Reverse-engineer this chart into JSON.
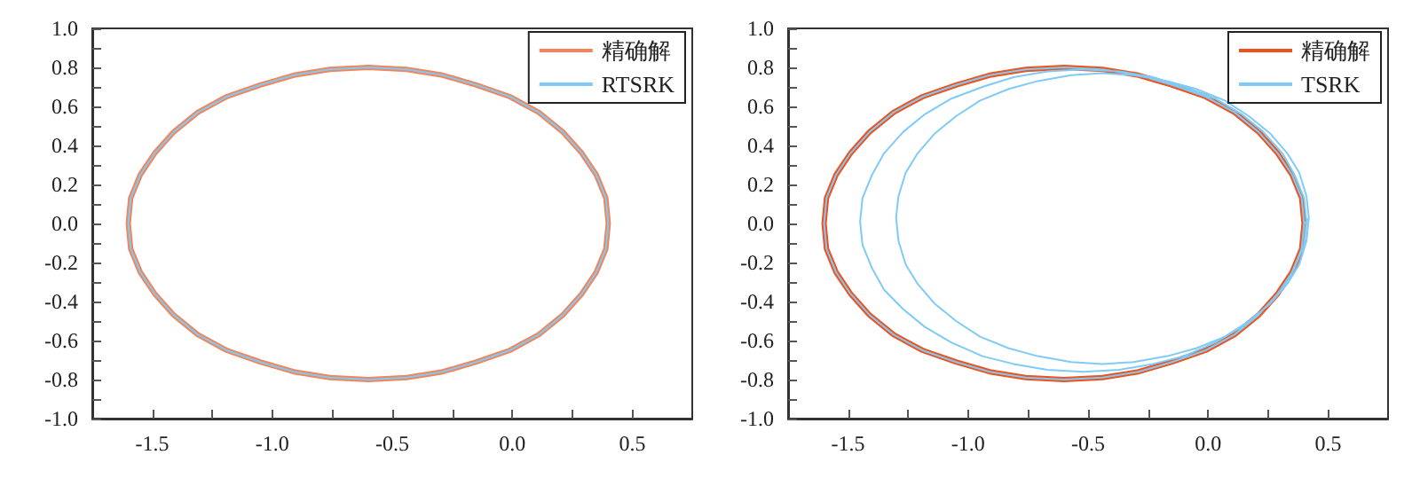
{
  "chart_data": [
    {
      "type": "line",
      "marker": "none",
      "line_style": "solid",
      "grid": false,
      "legend": "top right",
      "xlim": [
        -1.75,
        0.75
      ],
      "ylim": [
        -1.0,
        1.0
      ],
      "xticks": [
        {
          "value": -1.5,
          "label": "-1.5"
        },
        {
          "value": -1.25,
          "label": null
        },
        {
          "value": -1.0,
          "label": "-1.0"
        },
        {
          "value": -0.75,
          "label": null
        },
        {
          "value": -0.5,
          "label": "-0.5"
        },
        {
          "value": -0.25,
          "label": null
        },
        {
          "value": 0,
          "label": "0.0"
        },
        {
          "value": 0.25,
          "label": null
        },
        {
          "value": 0.5,
          "label": "0.5"
        }
      ],
      "yticks": [
        {
          "value": -1.0,
          "label": "-1.0"
        },
        {
          "value": -0.9,
          "label": null
        },
        {
          "value": -0.8,
          "label": "-0.8"
        },
        {
          "value": -0.7,
          "label": null
        },
        {
          "value": -0.6,
          "label": "-0.6"
        },
        {
          "value": -0.5,
          "label": null
        },
        {
          "value": -0.4,
          "label": "-0.4"
        },
        {
          "value": -0.3,
          "label": null
        },
        {
          "value": -0.2,
          "label": "-0.2"
        },
        {
          "value": -0.1,
          "label": null
        },
        {
          "value": 0,
          "label": "0.0"
        },
        {
          "value": 0.1,
          "label": null
        },
        {
          "value": 0.2,
          "label": "0.2"
        },
        {
          "value": 0.3,
          "label": null
        },
        {
          "value": 0.4,
          "label": "0.4"
        },
        {
          "value": 0.5,
          "label": null
        },
        {
          "value": 0.6,
          "label": "0.6"
        },
        {
          "value": 0.7,
          "label": null
        },
        {
          "value": 0.8,
          "label": "0.8"
        },
        {
          "value": 0.9,
          "label": null
        },
        {
          "value": 1.0,
          "label": "1.0"
        }
      ],
      "series": [
        {
          "name": "精确解",
          "color": "#f4845a",
          "x": [
            0.4,
            0.39,
            0.35,
            0.29,
            0.21,
            0.11,
            -0.01,
            -0.15,
            -0.29,
            -0.44,
            -0.6,
            -0.76,
            -0.91,
            -1.05,
            -1.19,
            -1.31,
            -1.41,
            -1.49,
            -1.55,
            -1.59,
            -1.6,
            -1.59,
            -1.55,
            -1.49,
            -1.41,
            -1.31,
            -1.19,
            -1.05,
            -0.91,
            -0.76,
            -0.6,
            -0.44,
            -0.29,
            -0.15,
            -0.01,
            0.11,
            0.21,
            0.29,
            0.35,
            0.39,
            0.4,
            0.39
          ],
          "values": [
            0,
            0.13,
            0.25,
            0.36,
            0.47,
            0.57,
            0.65,
            0.71,
            0.76,
            0.79,
            0.8,
            0.79,
            0.76,
            0.71,
            0.65,
            0.57,
            0.47,
            0.36,
            0.25,
            0.13,
            0,
            -0.13,
            -0.25,
            -0.36,
            -0.47,
            -0.57,
            -0.65,
            -0.71,
            -0.76,
            -0.79,
            -0.8,
            -0.79,
            -0.76,
            -0.71,
            -0.65,
            -0.57,
            -0.47,
            -0.36,
            -0.25,
            -0.13,
            0,
            0.13
          ]
        },
        {
          "name": "RTSRK",
          "color": "#7ecbf5",
          "x": [
            0.4,
            0.39,
            0.35,
            0.29,
            0.21,
            0.11,
            -0.01,
            -0.15,
            -0.29,
            -0.44,
            -0.6,
            -0.76,
            -0.91,
            -1.05,
            -1.19,
            -1.31,
            -1.41,
            -1.49,
            -1.55,
            -1.59,
            -1.6,
            -1.59,
            -1.55,
            -1.49,
            -1.41,
            -1.31,
            -1.19,
            -1.05,
            -0.91,
            -0.76,
            -0.6,
            -0.44,
            -0.29,
            -0.15,
            -0.01,
            0.11,
            0.21,
            0.29,
            0.35,
            0.39,
            0.4,
            0.39
          ],
          "values": [
            0,
            0.13,
            0.25,
            0.36,
            0.47,
            0.57,
            0.65,
            0.71,
            0.76,
            0.79,
            0.8,
            0.79,
            0.76,
            0.71,
            0.65,
            0.57,
            0.47,
            0.36,
            0.25,
            0.13,
            0,
            -0.13,
            -0.25,
            -0.36,
            -0.47,
            -0.57,
            -0.65,
            -0.71,
            -0.76,
            -0.79,
            -0.8,
            -0.79,
            -0.76,
            -0.71,
            -0.65,
            -0.57,
            -0.47,
            -0.36,
            -0.25,
            -0.13,
            0,
            0.13
          ]
        }
      ]
    },
    {
      "type": "line",
      "marker": "none",
      "line_style": "solid",
      "grid": false,
      "legend": "top right",
      "xlim": [
        -1.75,
        0.75
      ],
      "ylim": [
        -1.0,
        1.0
      ],
      "xticks": [
        {
          "value": -1.5,
          "label": "-1.5"
        },
        {
          "value": -1.25,
          "label": null
        },
        {
          "value": -1.0,
          "label": "-1.0"
        },
        {
          "value": -0.75,
          "label": null
        },
        {
          "value": -0.5,
          "label": "-0.5"
        },
        {
          "value": -0.25,
          "label": null
        },
        {
          "value": 0,
          "label": "0.0"
        },
        {
          "value": 0.25,
          "label": null
        },
        {
          "value": 0.5,
          "label": "0.5"
        }
      ],
      "yticks": [
        {
          "value": -1.0,
          "label": "-1.0"
        },
        {
          "value": -0.9,
          "label": null
        },
        {
          "value": -0.8,
          "label": "-0.8"
        },
        {
          "value": -0.7,
          "label": null
        },
        {
          "value": -0.6,
          "label": "-0.6"
        },
        {
          "value": -0.5,
          "label": null
        },
        {
          "value": -0.4,
          "label": "-0.4"
        },
        {
          "value": -0.3,
          "label": null
        },
        {
          "value": -0.2,
          "label": "-0.2"
        },
        {
          "value": -0.1,
          "label": null
        },
        {
          "value": 0,
          "label": "0.0"
        },
        {
          "value": 0.1,
          "label": null
        },
        {
          "value": 0.2,
          "label": "0.2"
        },
        {
          "value": 0.3,
          "label": null
        },
        {
          "value": 0.4,
          "label": "0.4"
        },
        {
          "value": 0.5,
          "label": null
        },
        {
          "value": 0.6,
          "label": "0.6"
        },
        {
          "value": 0.7,
          "label": null
        },
        {
          "value": 0.8,
          "label": "0.8"
        },
        {
          "value": 0.9,
          "label": null
        },
        {
          "value": 1.0,
          "label": "1.0"
        }
      ],
      "series": [
        {
          "name": "精确解",
          "color": "#f0521e",
          "x": [
            0.4,
            0.39,
            0.35,
            0.29,
            0.21,
            0.11,
            -0.01,
            -0.15,
            -0.29,
            -0.44,
            -0.6,
            -0.76,
            -0.91,
            -1.05,
            -1.19,
            -1.31,
            -1.41,
            -1.49,
            -1.55,
            -1.59,
            -1.6,
            -1.59,
            -1.55,
            -1.49,
            -1.41,
            -1.31,
            -1.19,
            -1.05,
            -0.91,
            -0.76,
            -0.6,
            -0.44,
            -0.29,
            -0.15,
            -0.01,
            0.11,
            0.21,
            0.29,
            0.35,
            0.39,
            0.4,
            0.39
          ],
          "values": [
            0,
            0.13,
            0.25,
            0.36,
            0.47,
            0.57,
            0.65,
            0.71,
            0.76,
            0.79,
            0.8,
            0.79,
            0.76,
            0.71,
            0.65,
            0.57,
            0.47,
            0.36,
            0.25,
            0.13,
            0,
            -0.13,
            -0.25,
            -0.36,
            -0.47,
            -0.57,
            -0.65,
            -0.71,
            -0.76,
            -0.79,
            -0.8,
            -0.79,
            -0.76,
            -0.71,
            -0.65,
            -0.57,
            -0.47,
            -0.36,
            -0.25,
            -0.13,
            0,
            0.13
          ]
        },
        {
          "name": "TSRK",
          "color": "#7ecbf5",
          "x": [
            0.4,
            0.39,
            0.35,
            0.29,
            0.21,
            0.11,
            -0.01,
            -0.15,
            -0.29,
            -0.44,
            -0.6,
            -0.76,
            -0.91,
            -1.05,
            -1.19,
            -1.31,
            -1.41,
            -1.49,
            -1.55,
            -1.59,
            -1.6,
            -1.59,
            -1.55,
            -1.49,
            -1.41,
            -1.31,
            -1.19,
            -1.05,
            -0.91,
            -0.76,
            -0.6,
            -0.44,
            -0.29,
            -0.15,
            -0.01,
            0.11,
            0.21,
            0.29,
            0.35,
            0.39,
            0.4,
            0.41,
            0.4,
            0.36,
            0.31,
            0.23,
            0.14,
            0.03,
            -0.1,
            -0.23,
            -0.37,
            -0.52,
            -0.67,
            -0.81,
            -0.94,
            -1.07,
            -1.18,
            -1.27,
            -1.35,
            -1.4,
            -1.44,
            -1.45,
            -1.44,
            -1.4,
            -1.35,
            -1.27,
            -1.18,
            -1.07,
            -0.94,
            -0.81,
            -0.67,
            -0.52,
            -0.37,
            -0.23,
            -0.1,
            0.03,
            0.14,
            0.23,
            0.31,
            0.36,
            0.4,
            0.41,
            0.42,
            0.41,
            0.38,
            0.33,
            0.26,
            0.17,
            0.07,
            -0.05,
            -0.17,
            -0.31,
            -0.44,
            -0.57,
            -0.71,
            -0.83,
            -0.95,
            -1.05,
            -1.14,
            -1.21,
            -1.26,
            -1.29,
            -1.3,
            -1.29,
            -1.26,
            -1.21,
            -1.14,
            -1.05,
            -0.95,
            -0.83,
            -0.71,
            -0.57,
            -0.44,
            -0.31,
            -0.17,
            -0.05,
            0.07,
            0.17,
            0.26,
            0.33,
            0.38,
            0.41,
            0.42
          ],
          "values": [
            0,
            0.13,
            0.25,
            0.36,
            0.47,
            0.57,
            0.65,
            0.71,
            0.76,
            0.79,
            0.8,
            0.79,
            0.76,
            0.71,
            0.65,
            0.57,
            0.47,
            0.36,
            0.25,
            0.13,
            0,
            -0.13,
            -0.25,
            -0.36,
            -0.47,
            -0.57,
            -0.65,
            -0.71,
            -0.76,
            -0.79,
            -0.8,
            -0.79,
            -0.76,
            -0.71,
            -0.65,
            -0.57,
            -0.47,
            -0.36,
            -0.25,
            -0.13,
            0,
            0.01,
            0.13,
            0.25,
            0.36,
            0.47,
            0.56,
            0.64,
            0.7,
            0.75,
            0.78,
            0.79,
            0.78,
            0.75,
            0.7,
            0.64,
            0.56,
            0.47,
            0.36,
            0.25,
            0.13,
            0.01,
            -0.11,
            -0.23,
            -0.34,
            -0.44,
            -0.53,
            -0.61,
            -0.68,
            -0.72,
            -0.75,
            -0.76,
            -0.75,
            -0.72,
            -0.68,
            -0.61,
            -0.53,
            -0.44,
            -0.34,
            -0.23,
            -0.11,
            0.01,
            0.03,
            0.14,
            0.26,
            0.36,
            0.46,
            0.55,
            0.63,
            0.69,
            0.73,
            0.76,
            0.77,
            0.76,
            0.73,
            0.69,
            0.63,
            0.55,
            0.46,
            0.36,
            0.26,
            0.14,
            0.03,
            -0.09,
            -0.21,
            -0.31,
            -0.41,
            -0.5,
            -0.58,
            -0.64,
            -0.68,
            -0.71,
            -0.72,
            -0.71,
            -0.68,
            -0.64,
            -0.58,
            -0.5,
            -0.41,
            -0.31,
            -0.21,
            -0.09,
            0.03
          ]
        }
      ]
    }
  ]
}
